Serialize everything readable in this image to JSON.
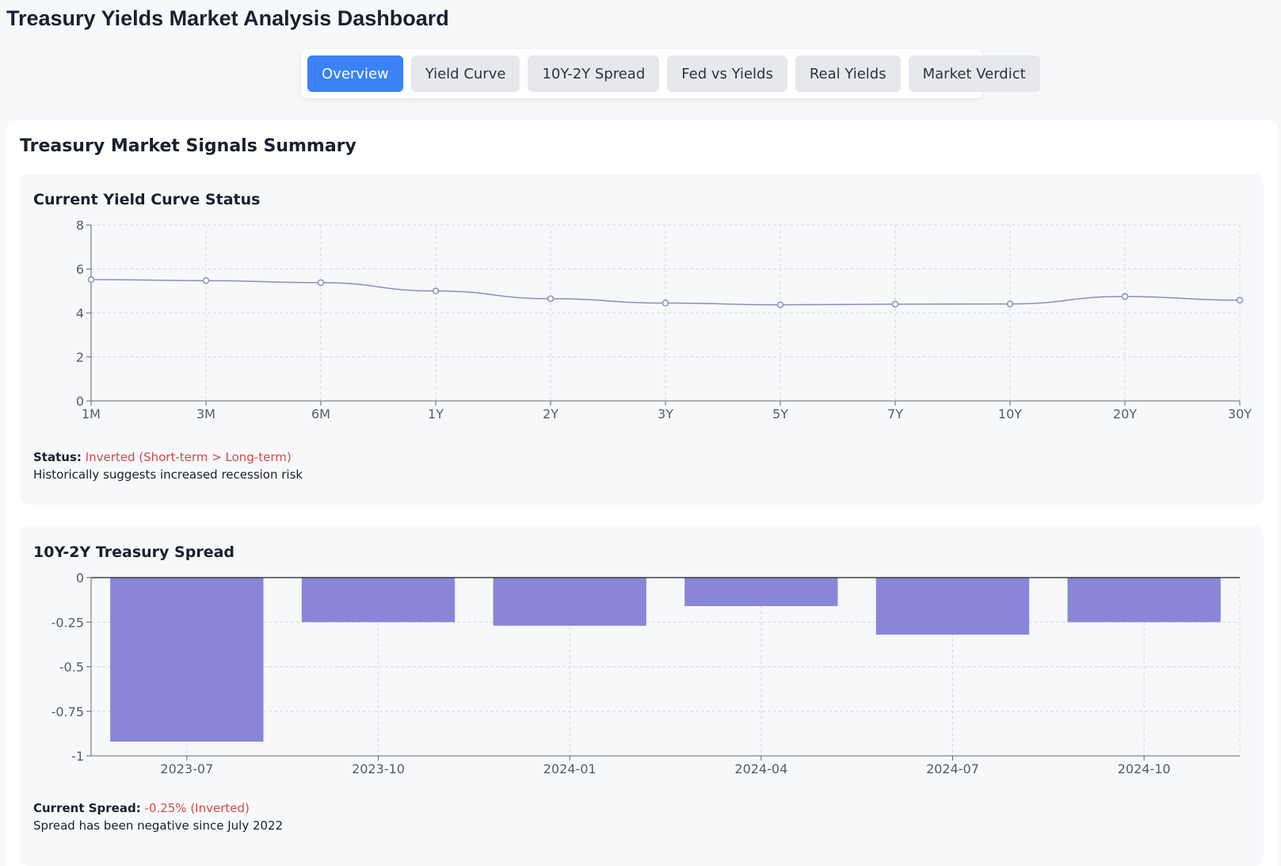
{
  "app": {
    "title": "Treasury Yields Market Analysis Dashboard"
  },
  "tabs": [
    {
      "label": "Overview",
      "active": true
    },
    {
      "label": "Yield Curve",
      "active": false
    },
    {
      "label": "10Y-2Y Spread",
      "active": false
    },
    {
      "label": "Fed vs Yields",
      "active": false
    },
    {
      "label": "Real Yields",
      "active": false
    },
    {
      "label": "Market Verdict",
      "active": false
    }
  ],
  "summary": {
    "title": "Treasury Market Signals Summary"
  },
  "yield_card": {
    "title": "Current Yield Curve Status",
    "status_label": "Status:",
    "status_value": "Inverted (Short-term > Long-term)",
    "note": "Historically suggests increased recession risk"
  },
  "spread_card": {
    "title": "10Y-2Y Treasury Spread",
    "status_label": "Current Spread:",
    "status_value": "-0.25% (Inverted)",
    "note": "Spread has been negative since July 2022"
  },
  "colors": {
    "line": "#8a8fbf",
    "bar": "#8985d8",
    "accent": "#3b82f6",
    "alert": "#d14b4b"
  },
  "chart_data": [
    {
      "type": "line",
      "title": "Current Yield Curve Status",
      "categories": [
        "1M",
        "3M",
        "6M",
        "1Y",
        "2Y",
        "3Y",
        "5Y",
        "7Y",
        "10Y",
        "20Y",
        "30Y"
      ],
      "values": [
        5.52,
        5.47,
        5.38,
        5.0,
        4.65,
        4.45,
        4.37,
        4.4,
        4.41,
        4.75,
        4.58
      ],
      "ylim": [
        0,
        8
      ],
      "yticks": [
        0,
        2,
        4,
        6,
        8
      ],
      "grid": true
    },
    {
      "type": "bar",
      "title": "10Y-2Y Treasury Spread",
      "categories": [
        "2023-07",
        "2023-10",
        "2024-01",
        "2024-04",
        "2024-07",
        "2024-10"
      ],
      "values": [
        -0.92,
        -0.25,
        -0.27,
        -0.16,
        -0.32,
        -0.25
      ],
      "ylim": [
        -1,
        0
      ],
      "yticks": [
        0,
        -0.25,
        -0.5,
        -0.75,
        -1
      ],
      "grid": true
    }
  ]
}
